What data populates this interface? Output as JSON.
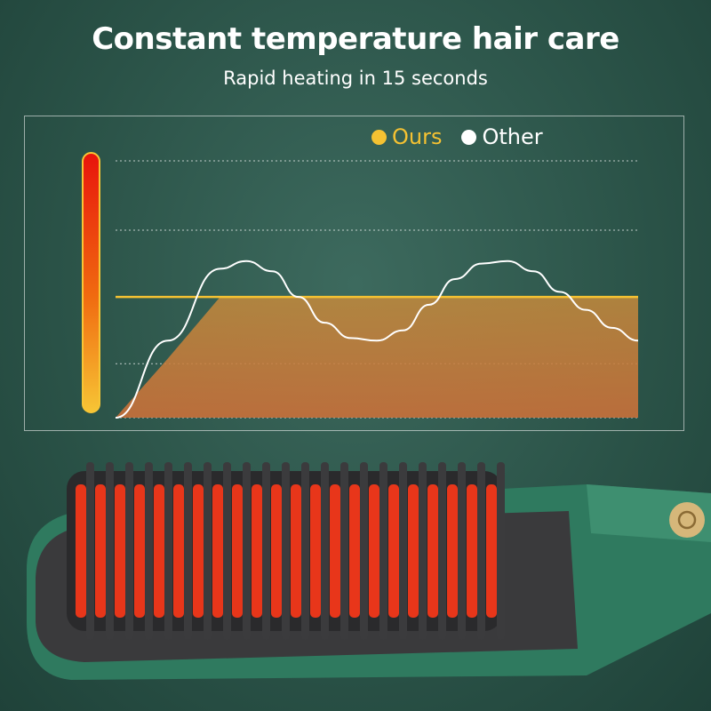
{
  "header": {
    "title": "Constant temperature hair care",
    "subtitle": "Rapid heating in 15 seconds"
  },
  "colors": {
    "ours": "#f5c232",
    "other": "#ffffff",
    "background": "#2a5247",
    "bristle": "#e8361a"
  },
  "chart_data": {
    "type": "line",
    "title": "",
    "xlabel": "",
    "ylabel": "",
    "legend": {
      "placement": "top-right",
      "entries": [
        "Ours",
        "Other"
      ]
    },
    "grid": true,
    "ylim": [
      0,
      100
    ],
    "x": [
      0,
      10,
      20,
      25,
      30,
      35,
      40,
      45,
      50,
      55,
      60,
      65,
      70,
      75,
      80,
      85,
      90,
      95,
      100
    ],
    "series": [
      {
        "name": "Ours",
        "color": "#f5c232",
        "values": [
          0,
          23,
          47,
          47,
          47,
          47,
          47,
          47,
          47,
          47,
          47,
          47,
          47,
          47,
          47,
          47,
          47,
          47,
          47
        ]
      },
      {
        "name": "Other",
        "color": "#ffffff",
        "values": [
          0,
          30,
          58,
          61,
          57,
          47,
          37,
          31,
          30,
          34,
          44,
          54,
          60,
          61,
          57,
          49,
          42,
          35,
          30
        ]
      }
    ]
  }
}
